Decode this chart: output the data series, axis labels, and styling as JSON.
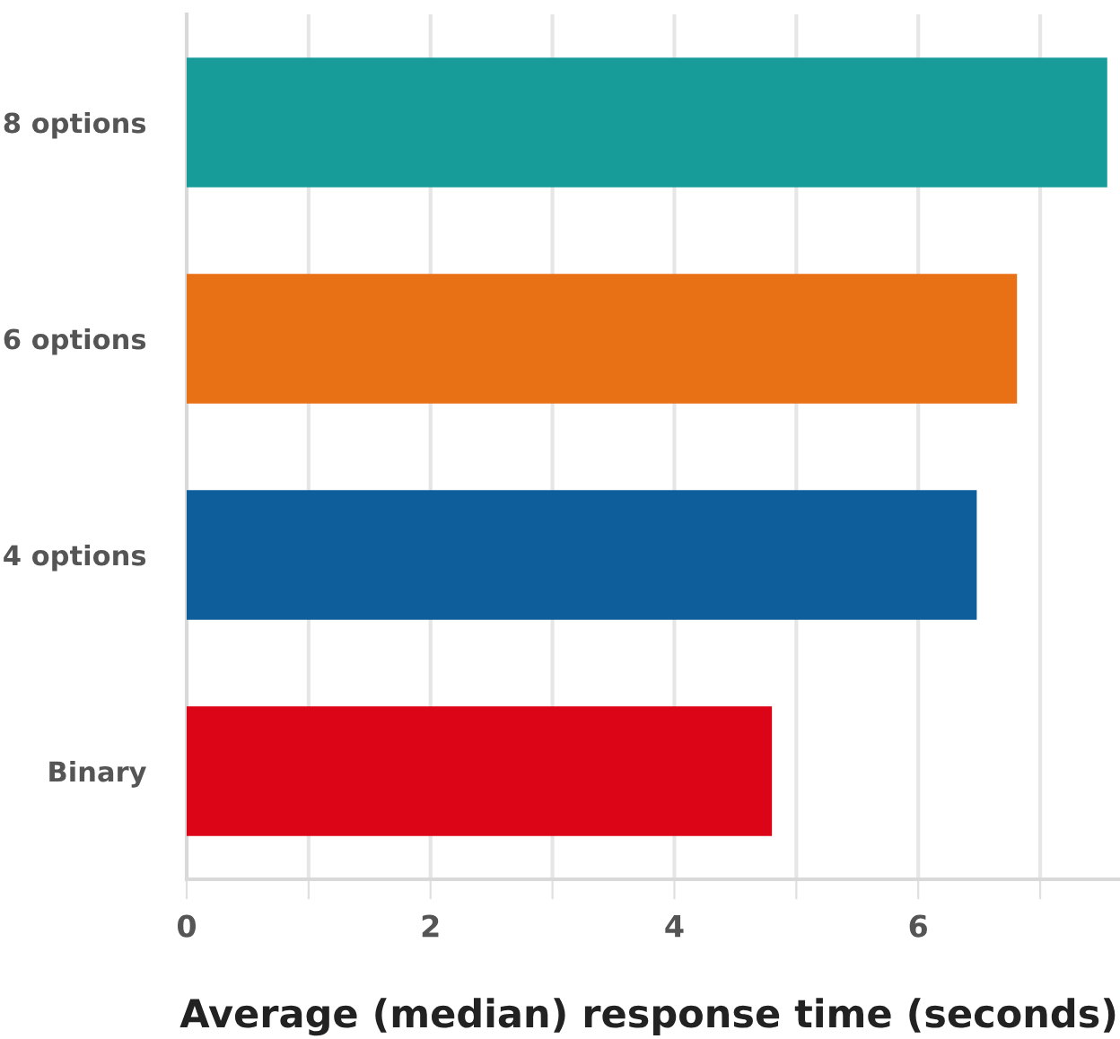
{
  "chart_data": {
    "type": "bar",
    "orientation": "horizontal",
    "xlabel": "Average (median) response time (seconds)",
    "categories": [
      "8 options",
      "6 options",
      "4 options",
      "Binary"
    ],
    "values": [
      7.55,
      6.81,
      6.48,
      4.8
    ],
    "colors": [
      "#179c9a",
      "#e87116",
      "#0f5e9c",
      "#dc0517"
    ],
    "xlim": [
      0,
      7.64
    ],
    "xticks": [
      0,
      {
        "value": 1,
        "label": null
      },
      2,
      {
        "value": 3,
        "label": null
      },
      4,
      {
        "value": 5,
        "label": null
      },
      6,
      {
        "value": 7,
        "label": null
      }
    ],
    "grid": "x"
  }
}
